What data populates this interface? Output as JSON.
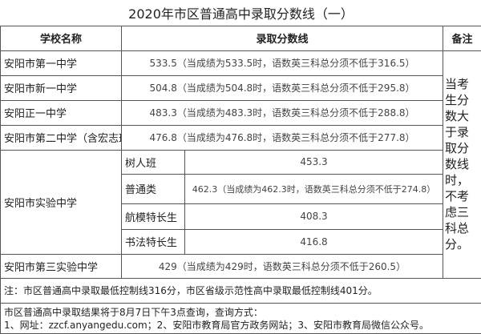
{
  "title": "2020年市区普通高中录取分数线（一）",
  "headers": {
    "school": "学校名称",
    "score": "录取分数线",
    "remark": "备注"
  },
  "rows": [
    {
      "school": "安阳市第一中学",
      "score": "533.5（当成绩为533.5时，语数英三科总分须不低于316.5）"
    },
    {
      "school": "安阳市新一中学",
      "score": "504.8（当成绩为504.8时，语数英三科总分须不低于295.8）"
    },
    {
      "school": "安阳正一中学",
      "score": "483.3（当成绩为483.3时，语数英三科总分须不低于288.8）"
    },
    {
      "school": "安阳市第二中学（含宏志班）",
      "score": "476.8（当成绩为476.8时，语数英三科总分须不低于277.8）"
    }
  ],
  "experimental": {
    "school": "安阳市实验中学",
    "classes": [
      {
        "name": "树人班",
        "score": "453.3"
      },
      {
        "name": "普通类",
        "score": "462.3（当成绩为462.3时，语数英三科总分须不低于274.8）"
      },
      {
        "name": "航模特长生",
        "score": "408.3"
      },
      {
        "name": "书法特长生",
        "score": "416.8"
      }
    ]
  },
  "third": {
    "school": "安阳市第三实验中学",
    "score": "429（当成绩为429时，语数英三科总分须不低于260.5）"
  },
  "remark": "当考生分数大于录取分数线时，不考虑三科总分。",
  "note": "注：市区普通高中录取最低控制线316分，市区省级示范性高中录取最低控制线401分。",
  "footer": {
    "line1": "市区普通高中录取结果将于8月7日下午3点查询，查询方式：",
    "line2": "1、网址：zzcf.anyangedu.com；2、安阳市教育局官方政务网站；3、安阳市教育局微信公众号。"
  }
}
